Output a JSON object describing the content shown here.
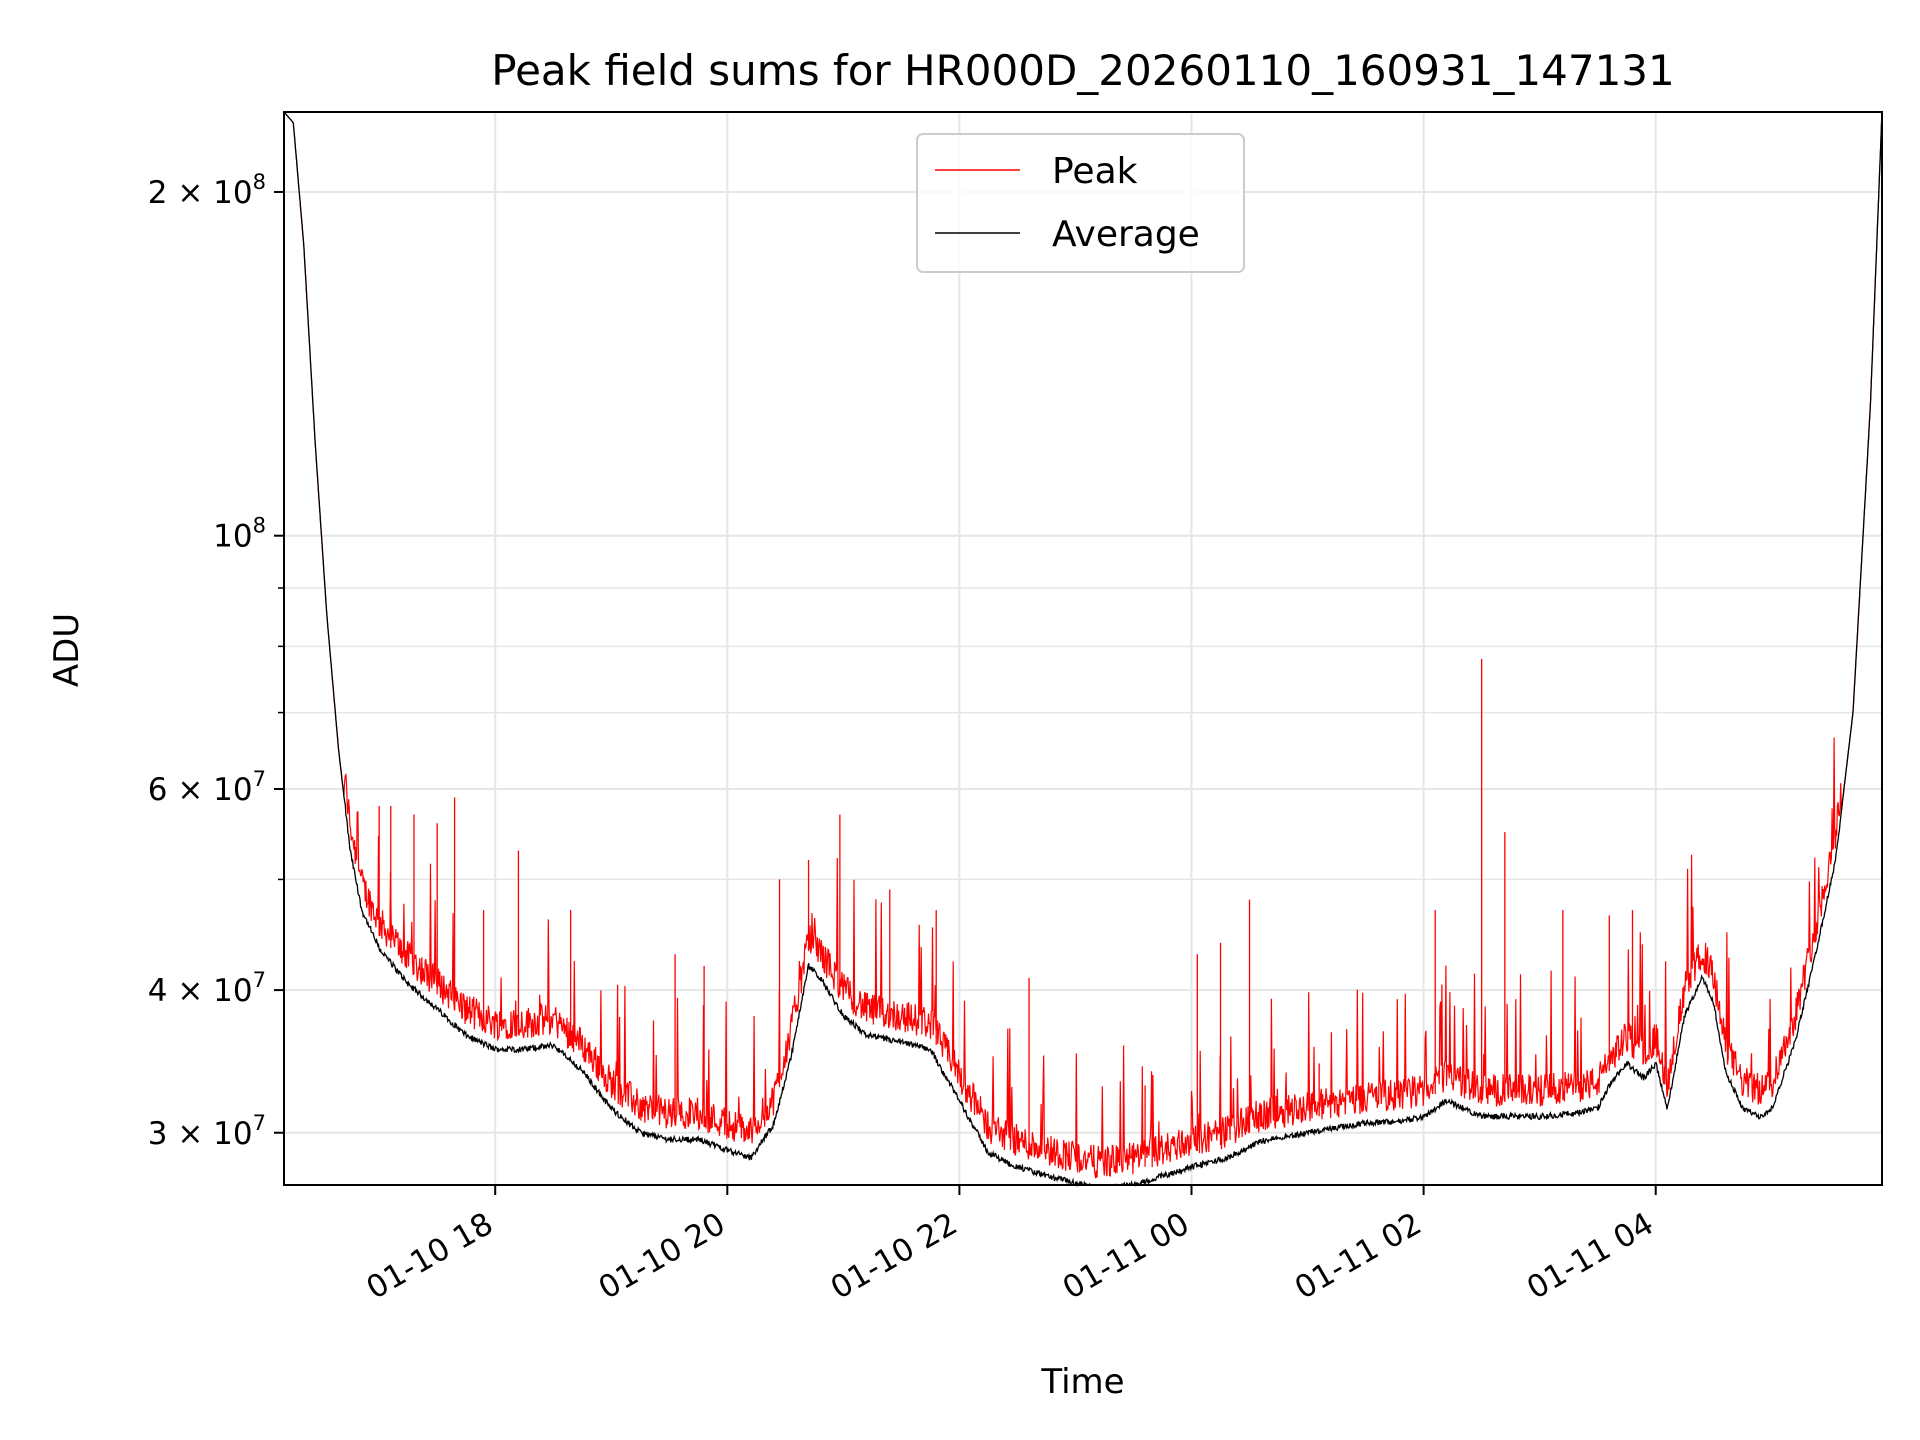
{
  "chart_data": {
    "type": "line",
    "title": "Peak field sums for HR000D_20260110_160931_147131",
    "xlabel": "Time",
    "ylabel": "ADU",
    "yscale": "log",
    "ylim": [
      27000000,
      235000000
    ],
    "xlim_hours": [
      16.18,
      5.95
    ],
    "grid": true,
    "legend_position": "top-center",
    "x_ticks": [
      {
        "hour": 18,
        "label": "01-10 18"
      },
      {
        "hour": 20,
        "label": "01-10 20"
      },
      {
        "hour": 22,
        "label": "01-10 22"
      },
      {
        "hour": 24,
        "label": "01-11 00"
      },
      {
        "hour": 26,
        "label": "01-11 02"
      },
      {
        "hour": 28,
        "label": "01-11 04"
      }
    ],
    "y_major_ticks": [
      {
        "value": 200000000,
        "mantissa": "2",
        "exponent": "8"
      },
      {
        "value": 100000000,
        "mantissa": "",
        "exponent": "8"
      },
      {
        "value": 60000000,
        "mantissa": "6",
        "exponent": "7"
      },
      {
        "value": 40000000,
        "mantissa": "4",
        "exponent": "7"
      },
      {
        "value": 30000000,
        "mantissa": "3",
        "exponent": "7"
      }
    ],
    "y_minor_gridlines": [
      50000000,
      70000000,
      80000000,
      90000000
    ],
    "series": [
      {
        "name": "Peak",
        "color": "#ff0000",
        "description": "Average plus noise and narrow spikes",
        "spikes": [
          {
            "hour": 17.0,
            "value": 58000000
          },
          {
            "hour": 17.1,
            "value": 58000000
          },
          {
            "hour": 17.3,
            "value": 57000000
          },
          {
            "hour": 17.5,
            "value": 56000000
          },
          {
            "hour": 17.65,
            "value": 59000000
          },
          {
            "hour": 17.9,
            "value": 47000000
          },
          {
            "hour": 18.2,
            "value": 53000000
          },
          {
            "hour": 18.65,
            "value": 47000000
          },
          {
            "hour": 19.55,
            "value": 43000000
          },
          {
            "hour": 19.8,
            "value": 42000000
          },
          {
            "hour": 20.45,
            "value": 50000000
          },
          {
            "hour": 20.7,
            "value": 52000000
          },
          {
            "hour": 20.97,
            "value": 57000000
          },
          {
            "hour": 21.4,
            "value": 49000000
          },
          {
            "hour": 21.8,
            "value": 47000000
          },
          {
            "hour": 22.6,
            "value": 41000000
          },
          {
            "hour": 23.6,
            "value": 33000000
          },
          {
            "hour": 24.05,
            "value": 43000000
          },
          {
            "hour": 24.25,
            "value": 44000000
          },
          {
            "hour": 24.5,
            "value": 48000000
          },
          {
            "hour": 25.1,
            "value": 34500000
          },
          {
            "hour": 26.1,
            "value": 47000000
          },
          {
            "hour": 26.5,
            "value": 78000000
          },
          {
            "hour": 26.7,
            "value": 55000000
          },
          {
            "hour": 27.2,
            "value": 47000000
          },
          {
            "hour": 27.6,
            "value": 46500000
          },
          {
            "hour": 27.8,
            "value": 47000000
          }
        ]
      },
      {
        "name": "Average",
        "color": "#000000",
        "keypoints": [
          [
            16.18,
            235000000
          ],
          [
            16.26,
            230000000
          ],
          [
            16.35,
            180000000
          ],
          [
            16.45,
            120000000
          ],
          [
            16.55,
            85000000
          ],
          [
            16.65,
            65000000
          ],
          [
            16.75,
            53000000
          ],
          [
            16.85,
            47000000
          ],
          [
            17.0,
            43500000
          ],
          [
            17.25,
            40500000
          ],
          [
            17.5,
            38500000
          ],
          [
            17.75,
            36500000
          ],
          [
            18.0,
            35500000
          ],
          [
            18.25,
            35500000
          ],
          [
            18.5,
            35800000
          ],
          [
            18.75,
            34000000
          ],
          [
            19.0,
            31500000
          ],
          [
            19.25,
            30000000
          ],
          [
            19.5,
            29600000
          ],
          [
            19.75,
            29600000
          ],
          [
            20.0,
            29000000
          ],
          [
            20.2,
            28500000
          ],
          [
            20.4,
            30500000
          ],
          [
            20.55,
            35000000
          ],
          [
            20.7,
            42000000
          ],
          [
            20.8,
            41000000
          ],
          [
            21.0,
            38000000
          ],
          [
            21.2,
            36500000
          ],
          [
            21.5,
            36000000
          ],
          [
            21.75,
            35500000
          ],
          [
            22.0,
            32000000
          ],
          [
            22.25,
            28800000
          ],
          [
            22.5,
            28000000
          ],
          [
            22.75,
            27500000
          ],
          [
            23.0,
            27100000
          ],
          [
            23.2,
            26800000
          ],
          [
            23.5,
            27000000
          ],
          [
            23.75,
            27500000
          ],
          [
            24.0,
            28000000
          ],
          [
            24.3,
            28500000
          ],
          [
            24.6,
            29500000
          ],
          [
            25.0,
            30000000
          ],
          [
            25.5,
            30600000
          ],
          [
            25.8,
            30700000
          ],
          [
            26.0,
            31000000
          ],
          [
            26.2,
            32000000
          ],
          [
            26.5,
            31000000
          ],
          [
            27.0,
            31000000
          ],
          [
            27.3,
            31200000
          ],
          [
            27.5,
            31500000
          ],
          [
            27.6,
            33000000
          ],
          [
            27.75,
            34500000
          ],
          [
            27.9,
            33500000
          ],
          [
            28.0,
            34500000
          ],
          [
            28.1,
            31500000
          ],
          [
            28.25,
            38000000
          ],
          [
            28.4,
            41000000
          ],
          [
            28.5,
            39000000
          ],
          [
            28.6,
            34000000
          ],
          [
            28.75,
            31500000
          ],
          [
            28.9,
            31000000
          ],
          [
            29.0,
            31500000
          ],
          [
            29.2,
            36000000
          ],
          [
            29.4,
            44000000
          ],
          [
            29.55,
            52000000
          ],
          [
            29.7,
            70000000
          ],
          [
            29.85,
            130000000
          ],
          [
            29.95,
            235000000
          ]
        ]
      }
    ]
  }
}
